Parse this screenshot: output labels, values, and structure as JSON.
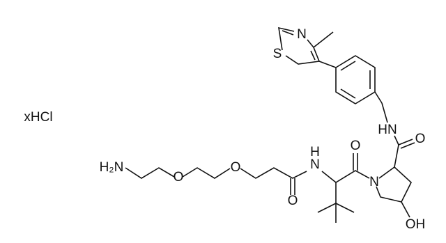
{
  "salt": "xHCl",
  "atoms": {
    "amine": "H₂N",
    "ether_1": "O",
    "ether_2": "O",
    "amide_1_oxygen": "O",
    "amide_1_nh": "H\nN",
    "amide_2_oxygen": "O",
    "pyrrolidine_n": "N",
    "amide_3_oxygen": "O",
    "amide_3_nh": "HN",
    "hydroxyl": "OH",
    "thiazole_n": "N",
    "thiazole_s": "S"
  }
}
